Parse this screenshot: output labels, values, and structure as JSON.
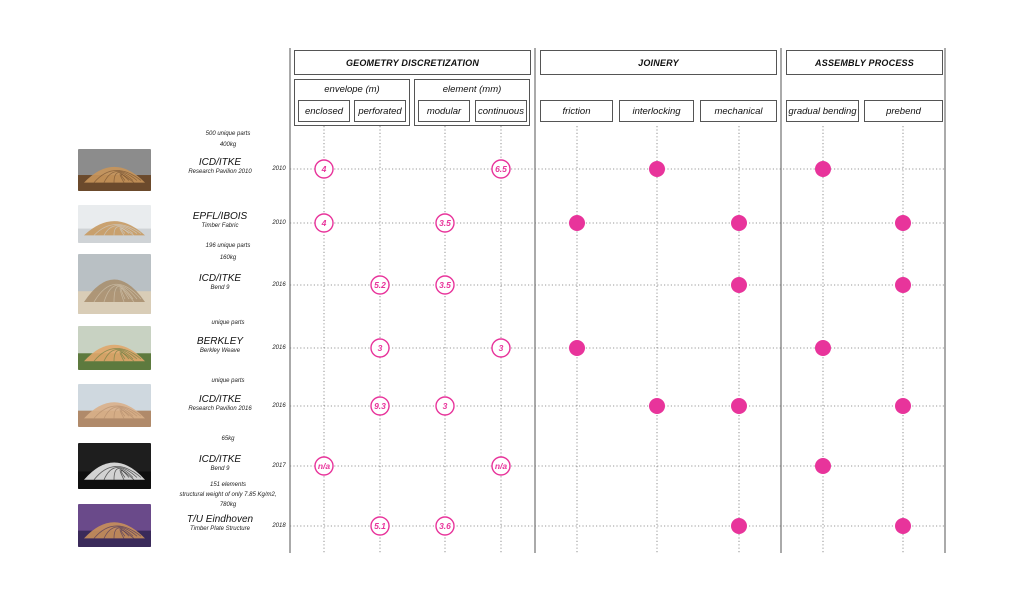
{
  "categories": [
    {
      "key": "geo",
      "label": "GEOMETRY DISCRETIZATION"
    },
    {
      "key": "joi",
      "label": "JOINERY"
    },
    {
      "key": "asm",
      "label": "ASSEMBLY PROCESS"
    }
  ],
  "subgroups": [
    {
      "key": "env",
      "label": "envelope (m)"
    },
    {
      "key": "elm",
      "label": "element (mm)"
    }
  ],
  "columns": [
    {
      "key": "enclosed",
      "label": "enclosed"
    },
    {
      "key": "perforated",
      "label": "perforated"
    },
    {
      "key": "modular",
      "label": "modular"
    },
    {
      "key": "continuous",
      "label": "continuous"
    },
    {
      "key": "friction",
      "label": "friction"
    },
    {
      "key": "interlocking",
      "label": "interlocking"
    },
    {
      "key": "mechanical",
      "label": "mechanical"
    },
    {
      "key": "gradual_bending",
      "label": "gradual bending"
    },
    {
      "key": "prebend",
      "label": "prebend"
    }
  ],
  "projects": [
    {
      "name": "ICD/ITKE",
      "subtitle": "Research Pavilion 2010",
      "year": "2010",
      "notes": [
        "500 unique parts",
        "400kg"
      ],
      "thumb": {
        "bg": "#6b4a2c",
        "fg": "#c8955a",
        "sky": "#8c8c8c"
      },
      "values": {
        "enclosed": "4",
        "continuous": "6.5"
      },
      "dots": [
        "interlocking",
        "gradual_bending"
      ]
    },
    {
      "name": "EPFL/IBOIS",
      "subtitle": "Timber Fabric",
      "year": "2010",
      "notes": [],
      "thumb": {
        "bg": "#cfd3d6",
        "fg": "#c79a62",
        "sky": "#e9ecee"
      },
      "values": {
        "enclosed": "4",
        "modular": "3.5"
      },
      "dots": [
        "friction",
        "mechanical",
        "prebend"
      ]
    },
    {
      "name": "ICD/ITKE",
      "subtitle": "Bend 9",
      "year": "2016",
      "notes": [
        "196 unique parts",
        "160kg"
      ],
      "thumb": {
        "bg": "#d9cdb7",
        "fg": "#a89070",
        "sky": "#b9c0c4"
      },
      "values": {
        "perforated": "5.2",
        "modular": "3.5"
      },
      "dots": [
        "mechanical",
        "prebend"
      ]
    },
    {
      "name": "BERKLEY",
      "subtitle": "Berkley Weave",
      "year": "2016",
      "notes": [
        "unique parts"
      ],
      "thumb": {
        "bg": "#5d7a3e",
        "fg": "#e0a66a",
        "sky": "#c8d2c2"
      },
      "values": {
        "perforated": "3",
        "continuous": "3"
      },
      "dots": [
        "friction",
        "gradual_bending"
      ]
    },
    {
      "name": "ICD/ITKE",
      "subtitle": "Research Pavilion 2016",
      "year": "2016",
      "notes": [
        "unique parts"
      ],
      "thumb": {
        "bg": "#b08a6a",
        "fg": "#d9b08a",
        "sky": "#cfd8df"
      },
      "values": {
        "perforated": "9.3",
        "modular": "3"
      },
      "dots": [
        "interlocking",
        "mechanical",
        "prebend"
      ]
    },
    {
      "name": "ICD/ITKE",
      "subtitle": "Bend 9",
      "year": "2017",
      "notes": [
        "65kg"
      ],
      "thumb": {
        "bg": "#0f0f0f",
        "fg": "#e8e8e8",
        "sky": "#1e1e1e"
      },
      "values": {
        "enclosed": "n/a",
        "continuous": "n/a"
      },
      "dots": [
        "gradual_bending"
      ]
    },
    {
      "name": "T/U Eindhoven",
      "subtitle": "Timber Plate Structure",
      "year": "2018",
      "notes": [
        "151 elements",
        "structural weight of only 7.85 Kg/m2,",
        "780kg"
      ],
      "thumb": {
        "bg": "#3a2a5a",
        "fg": "#c9905a",
        "sky": "#6a4a8a"
      },
      "values": {
        "perforated": "5.1",
        "modular": "3.6"
      },
      "dots": [
        "mechanical",
        "prebend"
      ]
    }
  ],
  "colors": {
    "accent": "#e8349b",
    "grid": "#777777",
    "axis": "#555555"
  }
}
